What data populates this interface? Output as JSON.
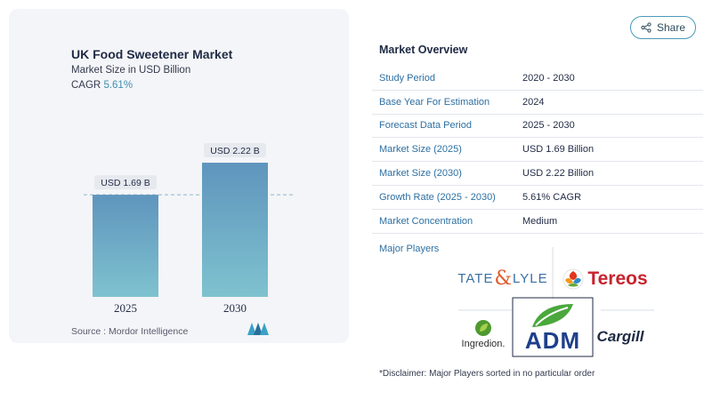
{
  "header": {
    "share_label": "Share"
  },
  "chart_card": {
    "title": "UK Food Sweetener Market",
    "subtitle": "Market Size in USD Billion",
    "cagr_label": "CAGR",
    "cagr_value": "5.61%",
    "source": "Source :  Mordor Intelligence"
  },
  "chart_data": {
    "type": "bar",
    "categories": [
      "2025",
      "2030"
    ],
    "values": [
      1.69,
      2.22
    ],
    "data_labels": [
      "USD 1.69 B",
      "USD 2.22 B"
    ],
    "title": "UK Food Sweetener Market",
    "ylabel": "Market Size in USD Billion",
    "ylim": [
      0,
      2.5
    ],
    "reference_line": 1.69,
    "colors": {
      "bar_top": "#5f95bd",
      "bar_bottom": "#7fc2cf",
      "label_bg": "#e6e9ee",
      "ref_line": "#8fb4c8"
    }
  },
  "overview": {
    "title": "Market Overview",
    "rows": [
      {
        "label": "Study Period",
        "value": "2020 - 2030"
      },
      {
        "label": "Base Year For Estimation",
        "value": "2024"
      },
      {
        "label": "Forecast Data Period",
        "value": "2025 - 2030"
      },
      {
        "label": "Market Size (2025)",
        "value": "USD 1.69 Billion"
      },
      {
        "label": "Market Size (2030)",
        "value": "USD 2.22 Billion"
      },
      {
        "label": "Growth Rate (2025 - 2030)",
        "value": "5.61% CAGR"
      },
      {
        "label": "Market Concentration",
        "value": "Medium"
      }
    ]
  },
  "major_players": {
    "label": "Major Players",
    "logos": {
      "tate_lyle": {
        "left": "TATE",
        "amp": "&",
        "right": "LYLE"
      },
      "tereos": "Tereos",
      "ingredion": "Ingredion.",
      "adm": "ADM",
      "cargill": "Cargill"
    }
  },
  "disclaimer": "*Disclaimer: Major Players sorted in no particular order",
  "colors": {
    "accent": "#2c6fa2",
    "share_border": "#4a9ab7"
  }
}
